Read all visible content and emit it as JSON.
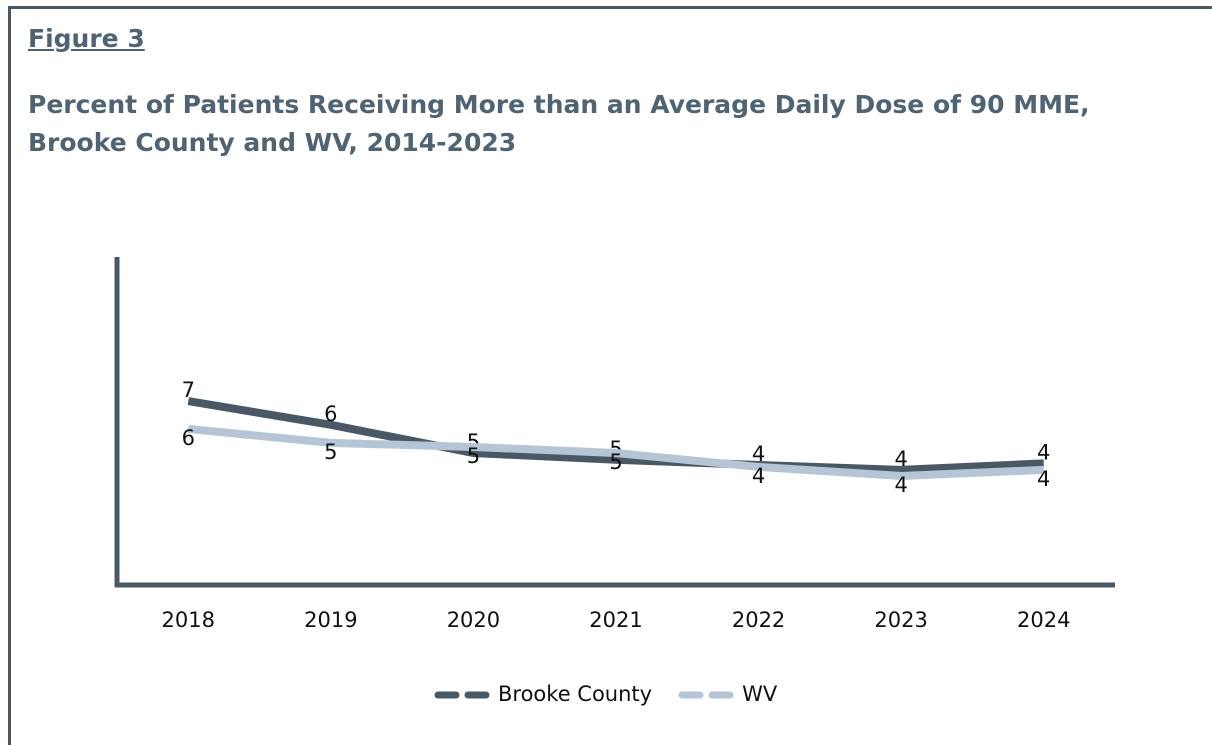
{
  "chart_data": {
    "type": "line",
    "label": "Figure 3",
    "title": "Percent of Patients Receiving More than an Average Daily Dose of 90 MME, Brooke County and WV, 2014-2023",
    "categories": [
      "2018",
      "2019",
      "2020",
      "2021",
      "2022",
      "2023",
      "2024"
    ],
    "ylim": [
      0,
      12
    ],
    "series": [
      {
        "name": "Brooke County",
        "color": "#4a5866",
        "values": [
          6.73,
          5.86,
          4.83,
          4.58,
          4.39,
          4.21,
          4.45
        ],
        "value_labels": [
          "7",
          "6",
          "5",
          "5",
          "4",
          "4",
          "4"
        ]
      },
      {
        "name": "WV",
        "color": "#b5c5d5",
        "values": [
          5.71,
          5.2,
          5.05,
          4.83,
          4.32,
          3.99,
          4.21
        ],
        "value_labels": [
          "6",
          "5",
          "5",
          "5",
          "4",
          "4",
          "4"
        ]
      }
    ],
    "legend": "bottom"
  }
}
